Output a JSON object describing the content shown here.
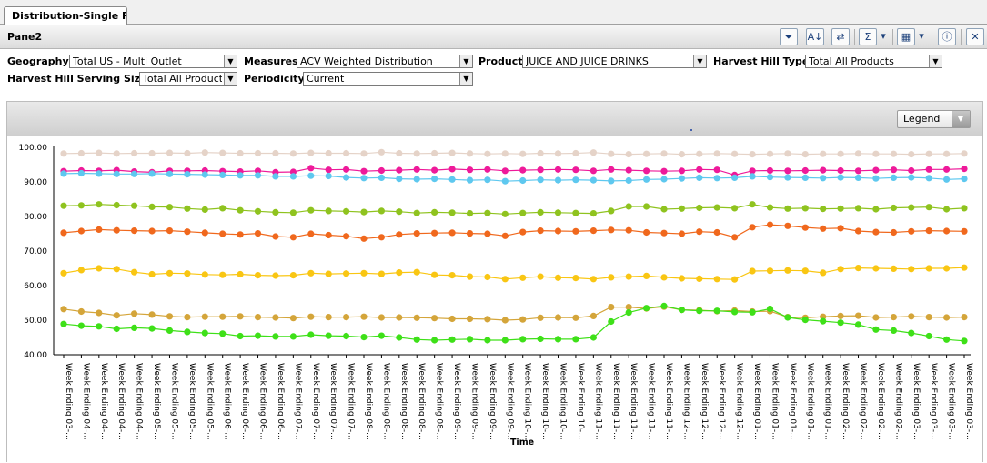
{
  "tab": {
    "title": "Distribution-Single R..."
  },
  "pane": {
    "title": "Pane2"
  },
  "toolbar": {
    "icons": [
      "filter-icon",
      "sort-icon",
      "grid-swap-icon",
      "sum-icon",
      "dropdown-icon",
      "table-layout-icon",
      "dropdown-icon",
      "info-icon",
      "tools-icon"
    ],
    "filter_glyph": "⏷",
    "sort_glyph": "A↓",
    "swap_glyph": "⇄",
    "sum_glyph": "Σ",
    "dd_glyph": "▾",
    "layout_glyph": "▦",
    "info_glyph": "ⓘ",
    "tools_glyph": "✕"
  },
  "filters": {
    "geography_label": "Geography",
    "geography_value": "Total US - Multi Outlet",
    "measures_label": "Measures",
    "measures_value": "ACV Weighted Distribution",
    "product_label": "Product",
    "product_value": "JUICE AND JUICE DRINKS",
    "harvest_type_label": "Harvest Hill Type",
    "harvest_type_value": "Total All Products",
    "serving_size_label": "Harvest Hill Serving Size",
    "serving_size_value": "Total All Products",
    "periodicity_label": "Periodicity",
    "periodicity_value": "Current",
    "arrow": "▼"
  },
  "legend": {
    "label": "Legend",
    "arrow": "▼"
  },
  "chart_data": {
    "type": "line",
    "xlabel": "Time",
    "ylabel": "",
    "ylim": [
      40,
      100
    ],
    "yticks": [
      "40.00",
      "50.00",
      "60.00",
      "70.00",
      "80.00",
      "90.00",
      "100.00"
    ],
    "grid": false,
    "legend": "hidden",
    "categories": [
      "Week Ending 03-...",
      "Week Ending 04-...",
      "Week Ending 04-...",
      "Week Ending 04-...",
      "Week Ending 04-...",
      "Week Ending 05-...",
      "Week Ending 05-...",
      "Week Ending 05-...",
      "Week Ending 05-...",
      "Week Ending 06-...",
      "Week Ending 06-...",
      "Week Ending 06-...",
      "Week Ending 06-...",
      "Week Ending 07-...",
      "Week Ending 07-...",
      "Week Ending 07-...",
      "Week Ending 07-...",
      "Week Ending 08-...",
      "Week Ending 08-...",
      "Week Ending 08-...",
      "Week Ending 08-...",
      "Week Ending 08-...",
      "Week Ending 09-...",
      "Week Ending 09-...",
      "Week Ending 09-...",
      "Week Ending 09-...",
      "Week Ending 10-...",
      "Week Ending 10-...",
      "Week Ending 10-...",
      "Week Ending 10-...",
      "Week Ending 11-...",
      "Week Ending 11-...",
      "Week Ending 11-...",
      "Week Ending 11-...",
      "Week Ending 11-...",
      "Week Ending 12-...",
      "Week Ending 12-...",
      "Week Ending 12-...",
      "Week Ending 12-...",
      "Week Ending 01-...",
      "Week Ending 01-...",
      "Week Ending 01-...",
      "Week Ending 01-...",
      "Week Ending 01-...",
      "Week Ending 02-...",
      "Week Ending 02-...",
      "Week Ending 02-...",
      "Week Ending 02-...",
      "Week Ending 03-...",
      "Week Ending 03-...",
      "Week Ending 03-...",
      "Week Ending 03-..."
    ],
    "series": [
      {
        "color": "#e5d3c8",
        "values": [
          98.2,
          98.3,
          98.4,
          98.2,
          98.3,
          98.3,
          98.4,
          98.3,
          98.5,
          98.4,
          98.3,
          98.3,
          98.3,
          98.2,
          98.4,
          98.3,
          98.3,
          98.2,
          98.6,
          98.3,
          98.2,
          98.3,
          98.4,
          98.2,
          98.1,
          98.2,
          98.1,
          98.3,
          98.2,
          98.3,
          98.5,
          98.1,
          98.0,
          98.1,
          98.2,
          98.0,
          98.1,
          98.2,
          98.1,
          98.0,
          98.1,
          98.2,
          98.0,
          98.1,
          98.1,
          98.2,
          98.1,
          98.1,
          98.0,
          98.1,
          98.1,
          98.2
        ]
      },
      {
        "color": "#ee1a9a",
        "values": [
          93.1,
          93.3,
          93.2,
          93.4,
          93.0,
          92.8,
          93.2,
          93.2,
          93.3,
          93.1,
          93.0,
          93.2,
          92.8,
          92.9,
          94.0,
          93.5,
          93.6,
          93.1,
          93.3,
          93.4,
          93.6,
          93.4,
          93.7,
          93.5,
          93.6,
          93.2,
          93.4,
          93.5,
          93.6,
          93.5,
          93.2,
          93.6,
          93.4,
          93.2,
          93.1,
          93.2,
          93.6,
          93.5,
          92.0,
          93.2,
          93.3,
          93.2,
          93.3,
          93.4,
          93.3,
          93.2,
          93.4,
          93.5,
          93.3,
          93.6,
          93.6,
          93.8
        ]
      },
      {
        "color": "#5ec8ef",
        "values": [
          92.4,
          92.5,
          92.4,
          92.3,
          92.3,
          92.4,
          92.3,
          92.2,
          92.1,
          92.0,
          91.9,
          91.9,
          91.6,
          91.6,
          91.8,
          91.7,
          91.3,
          91.1,
          91.2,
          90.9,
          90.8,
          90.9,
          90.7,
          90.5,
          90.6,
          90.2,
          90.4,
          90.6,
          90.5,
          90.6,
          90.5,
          90.3,
          90.4,
          90.7,
          90.8,
          91.0,
          91.2,
          91.1,
          91.2,
          91.6,
          91.4,
          91.3,
          91.2,
          91.1,
          91.3,
          91.2,
          91.0,
          91.2,
          91.3,
          91.1,
          90.7,
          90.9
        ]
      },
      {
        "color": "#8fc31f",
        "values": [
          83.1,
          83.2,
          83.5,
          83.3,
          83.1,
          82.8,
          82.7,
          82.3,
          82.0,
          82.4,
          81.8,
          81.5,
          81.2,
          81.1,
          81.8,
          81.6,
          81.5,
          81.3,
          81.6,
          81.4,
          81.0,
          81.2,
          81.1,
          80.9,
          81.0,
          80.7,
          81.0,
          81.2,
          81.1,
          81.0,
          80.9,
          81.6,
          82.9,
          82.9,
          82.1,
          82.3,
          82.5,
          82.6,
          82.4,
          83.5,
          82.6,
          82.3,
          82.4,
          82.2,
          82.3,
          82.4,
          82.1,
          82.5,
          82.6,
          82.7,
          82.1,
          82.4
        ]
      },
      {
        "color": "#f0681d",
        "values": [
          75.3,
          75.8,
          76.2,
          76.0,
          75.9,
          75.8,
          75.9,
          75.6,
          75.3,
          75.0,
          74.8,
          75.1,
          74.2,
          74.0,
          75.0,
          74.6,
          74.3,
          73.6,
          74.0,
          74.8,
          75.1,
          75.2,
          75.3,
          75.1,
          75.0,
          74.4,
          75.5,
          75.9,
          75.8,
          75.7,
          75.9,
          76.1,
          76.0,
          75.4,
          75.2,
          75.0,
          75.6,
          75.4,
          74.0,
          76.9,
          77.6,
          77.3,
          76.8,
          76.5,
          76.6,
          75.8,
          75.5,
          75.4,
          75.7,
          75.9,
          75.8,
          75.7
        ]
      },
      {
        "color": "#f9c613",
        "values": [
          63.6,
          64.5,
          65.0,
          64.8,
          63.9,
          63.3,
          63.6,
          63.5,
          63.2,
          63.1,
          63.3,
          63.0,
          62.9,
          63.0,
          63.6,
          63.4,
          63.5,
          63.6,
          63.4,
          63.8,
          63.9,
          63.1,
          63.0,
          62.6,
          62.5,
          61.9,
          62.3,
          62.6,
          62.3,
          62.2,
          61.9,
          62.4,
          62.6,
          62.8,
          62.4,
          62.1,
          62.0,
          61.9,
          61.8,
          64.2,
          64.3,
          64.4,
          64.3,
          63.7,
          64.8,
          65.1,
          65.0,
          64.9,
          64.8,
          65.0,
          65.0,
          65.2
        ]
      },
      {
        "color": "#d4a53a",
        "values": [
          53.2,
          52.5,
          52.1,
          51.4,
          51.9,
          51.6,
          51.1,
          50.9,
          51.0,
          51.0,
          51.1,
          50.9,
          50.8,
          50.6,
          51.0,
          50.9,
          50.9,
          51.0,
          50.8,
          50.8,
          50.7,
          50.6,
          50.4,
          50.4,
          50.3,
          50.0,
          50.2,
          50.7,
          50.8,
          50.7,
          51.2,
          53.8,
          53.8,
          53.4,
          53.9,
          53.0,
          52.9,
          52.6,
          52.8,
          52.5,
          52.6,
          50.9,
          50.7,
          51.0,
          51.2,
          51.3,
          50.8,
          50.9,
          51.1,
          50.9,
          50.8,
          50.9
        ]
      },
      {
        "color": "#3ee018",
        "values": [
          48.9,
          48.4,
          48.2,
          47.5,
          47.8,
          47.6,
          47.0,
          46.6,
          46.3,
          46.1,
          45.4,
          45.5,
          45.3,
          45.3,
          45.8,
          45.5,
          45.4,
          45.1,
          45.5,
          45.0,
          44.4,
          44.2,
          44.4,
          44.5,
          44.2,
          44.2,
          44.5,
          44.6,
          44.5,
          44.5,
          45.0,
          49.6,
          52.2,
          53.5,
          54.1,
          53.0,
          52.7,
          52.7,
          52.4,
          52.3,
          53.3,
          50.8,
          50.1,
          49.7,
          49.3,
          48.7,
          47.3,
          47.0,
          46.3,
          45.4,
          44.4,
          44.0
        ]
      }
    ]
  }
}
